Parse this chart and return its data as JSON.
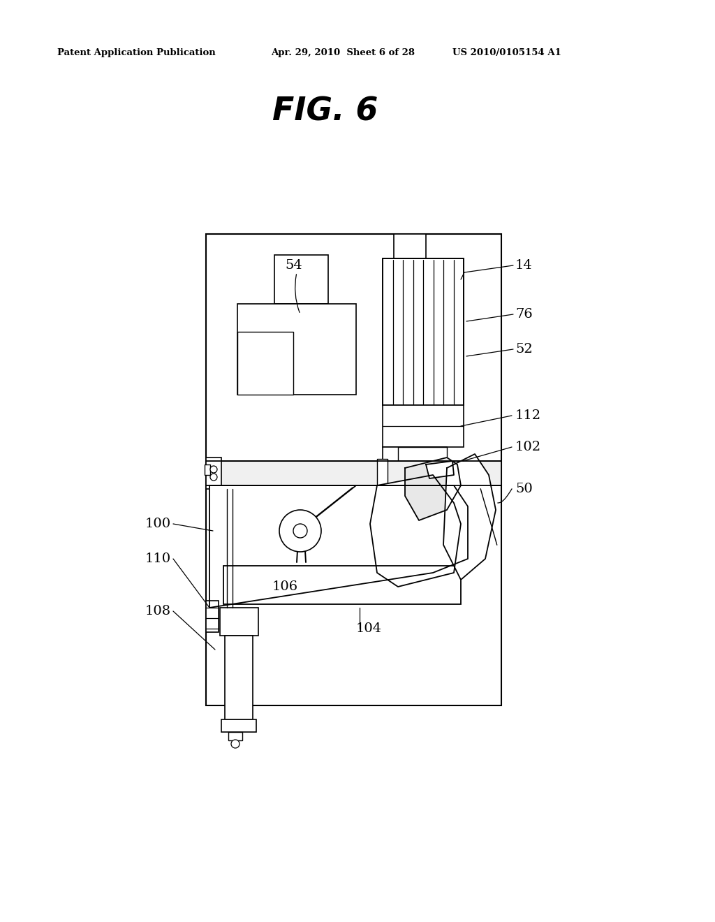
{
  "background_color": "#ffffff",
  "header_left": "Patent Application Publication",
  "header_mid": "Apr. 29, 2010  Sheet 6 of 28",
  "header_right": "US 2010/0105154 A1",
  "figure_title": "FIG. 6",
  "line_color": "#000000",
  "text_color": "#000000"
}
